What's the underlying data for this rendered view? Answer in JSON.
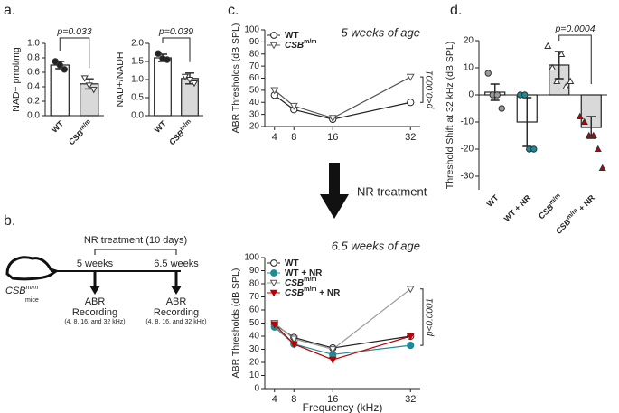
{
  "labels": {
    "a": "a.",
    "b": "b.",
    "c": "c.",
    "d": "d.",
    "nr_arrow": "NR treatment"
  },
  "diagram": {
    "treatment": "NR treatment (10 days)",
    "week1": "5 weeks",
    "week2": "6.5 weeks",
    "mouse": [
      "CSB",
      "m/m"
    ],
    "mouse_sub": "mice",
    "recording": [
      "ABR",
      "Recording"
    ],
    "freqs": "(4, 8, 16, and 32 kHz)"
  },
  "chart_data": [
    {
      "type": "bar",
      "ylabel": "NAD+ pmol/mg",
      "categories": [
        [
          "WT"
        ],
        [
          "CSB",
          "m/m"
        ]
      ],
      "values": [
        0.7,
        0.44
      ],
      "errors": [
        0.05,
        0.07
      ],
      "points": [
        [
          0.75,
          0.7,
          0.64
        ],
        [
          0.52,
          0.42,
          0.36
        ]
      ],
      "colors": [
        "#ffffff",
        "#d9d9d9"
      ],
      "point_colors": [
        "#222222",
        "#ffffff"
      ],
      "point_markers": [
        "circle",
        "triangle-down"
      ],
      "ylim": [
        0,
        1.0
      ],
      "yticks": [
        {
          "value": 0,
          "label": "0.0"
        },
        0.2,
        0.4,
        0.6,
        0.8,
        {
          "value": 1,
          "label": "1.0"
        }
      ],
      "annotation": "p=0.033"
    },
    {
      "type": "bar",
      "ylabel": "NAD+/NADH",
      "categories": [
        [
          "WT"
        ],
        [
          "CSB",
          "m/m"
        ]
      ],
      "values": [
        1.6,
        1.03
      ],
      "errors": [
        0.1,
        0.15
      ],
      "points": [
        [
          1.72,
          1.58,
          1.55
        ],
        [
          1.08,
          1.0,
          0.9
        ]
      ],
      "colors": [
        "#ffffff",
        "#d9d9d9"
      ],
      "point_colors": [
        "#222222",
        "#ffffff"
      ],
      "point_markers": [
        "circle",
        "triangle-down"
      ],
      "ylim": [
        0,
        2.0
      ],
      "yticks": [
        {
          "value": 0,
          "label": "0.0"
        },
        0.5,
        {
          "value": 1,
          "label": "1.0"
        },
        1.5,
        {
          "value": 2,
          "label": "2.0"
        }
      ],
      "annotation": "p=0.039"
    },
    {
      "type": "line",
      "title": "5 weeks of age",
      "ylabel": "ABR Thresholds (dB SPL)",
      "x": [
        4,
        8,
        16,
        32
      ],
      "xlim": [
        2,
        34
      ],
      "xticks": [
        4,
        8,
        16,
        32
      ],
      "ylim": [
        20,
        100
      ],
      "yticks": [
        20,
        30,
        40,
        50,
        60,
        70,
        80,
        90,
        100
      ],
      "series": [
        {
          "name": [
            "WT"
          ],
          "color": "#222222",
          "fill": "#ffffff",
          "marker": "circle",
          "values": [
            46,
            34,
            26,
            40
          ]
        },
        {
          "name": [
            "CSB",
            "m/m"
          ],
          "color": "#555555",
          "fill": "#ffffff",
          "marker": "triangle-down",
          "values": [
            50,
            37,
            27,
            61
          ]
        }
      ],
      "legend": "upper left",
      "annotation": "p<0.0001"
    },
    {
      "type": "line",
      "title": "6.5 weeks of age",
      "ylabel": "ABR Thresholds (dB SPL)",
      "xlabel": "Frequency (kHz)",
      "x": [
        4,
        8,
        16,
        32
      ],
      "xlim": [
        2,
        34
      ],
      "xticks": [
        4,
        8,
        16,
        32
      ],
      "ylim": [
        0,
        100
      ],
      "yticks": [
        0,
        10,
        20,
        30,
        40,
        50,
        60,
        70,
        80,
        90,
        100
      ],
      "series": [
        {
          "name": [
            "WT"
          ],
          "color": "#222222",
          "fill": "#ffffff",
          "marker": "circle",
          "values": [
            49,
            39,
            31,
            40
          ]
        },
        {
          "name": [
            "WT + NR"
          ],
          "color": "#1b8b97",
          "fill": "#1b8b97",
          "marker": "circle",
          "values": [
            47,
            34,
            26,
            33
          ]
        },
        {
          "name": [
            "CSB",
            "m/m"
          ],
          "color": "#999999",
          "fill": "#ffffff",
          "marker": "triangle-down",
          "values": [
            50,
            38,
            30,
            76
          ]
        },
        {
          "name": [
            "CSB",
            "m/m",
            " + NR"
          ],
          "color": "#c00000",
          "fill": "#c00000",
          "marker": "triangle-down",
          "values": [
            49,
            34,
            22,
            40
          ]
        }
      ],
      "legend": "upper left",
      "annotation": "p<0.0001"
    },
    {
      "type": "bar",
      "ylabel": "Threshold Shift at 32 kHz (dB SPL)",
      "categories": [
        [
          "WT"
        ],
        [
          "WT + NR"
        ],
        [
          "CSB",
          "m/m"
        ],
        [
          "CSB",
          "m/m",
          " + NR"
        ]
      ],
      "values": [
        1,
        -10,
        11,
        -12
      ],
      "errors": [
        3,
        9,
        5,
        4
      ],
      "points": [
        [
          8,
          0,
          0,
          -5
        ],
        [
          0,
          0,
          -20,
          -20
        ],
        [
          18,
          10,
          5,
          15,
          3,
          5
        ],
        [
          -8,
          -10,
          -15,
          -15,
          -20,
          -27
        ]
      ],
      "colors": [
        "#ffffff",
        "#ffffff",
        "#d9d9d9",
        "#d9d9d9"
      ],
      "point_colors": [
        "#999999",
        "#1b8b97",
        "#ffffff",
        "#c00000"
      ],
      "point_markers": [
        "circle",
        "circle",
        "triangle",
        "triangle"
      ],
      "ylim": [
        -35,
        20
      ],
      "yticks": [
        -30,
        -20,
        -10,
        0,
        10,
        20
      ],
      "annotation": "p=0.0004"
    }
  ]
}
